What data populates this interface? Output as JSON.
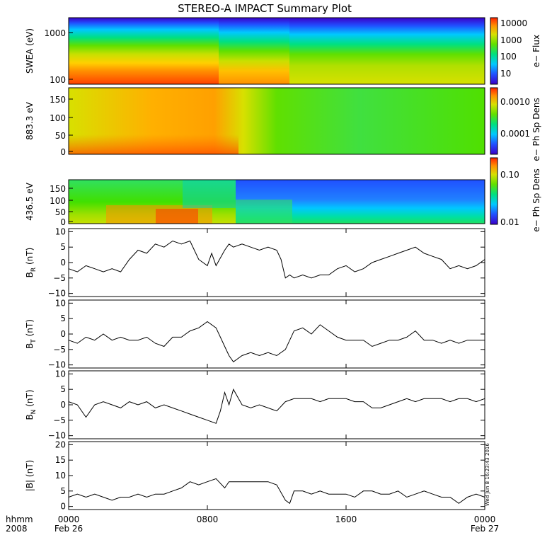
{
  "title": "STEREO-A IMPACT Summary Plot",
  "colors": {
    "frame": "#000000",
    "line": "#000000",
    "colormap": [
      "#3a00c8",
      "#2050ff",
      "#00c8ff",
      "#00e080",
      "#60e000",
      "#d8e000",
      "#ff9000",
      "#ff2000"
    ]
  },
  "timestamp": "Wed Jun 8 16:23:43 2016",
  "x_axis": {
    "hhmm_label": "hhmm",
    "year_label": "2008",
    "ticks": [
      "0000",
      "0800",
      "1600",
      "0000"
    ],
    "dates": [
      "Feb 26",
      "Feb 27"
    ]
  },
  "chart_data": [
    {
      "type": "heatmap",
      "ylabel": "SWEA (eV)",
      "ytick_labels": [
        "1000",
        "100"
      ],
      "yscale": "log",
      "colorbar": {
        "label": "e− Flux",
        "tick_labels": [
          "10000",
          "1000",
          "100",
          "10"
        ],
        "scale": "log"
      },
      "description_keys": {
        "x_hours": [
          0,
          24
        ],
        "transitions_hours": [
          9.5,
          12.5
        ]
      }
    },
    {
      "type": "heatmap",
      "ylabel": "883.3 eV",
      "ytick_labels": [
        "150",
        "100",
        "50",
        "0"
      ],
      "ylim": [
        0,
        180
      ],
      "colorbar": {
        "label": "e− Ph Sp Dens",
        "tick_labels": [
          "0.0010",
          "0.0001"
        ],
        "scale": "log"
      }
    },
    {
      "type": "heatmap",
      "ylabel": "436.5 eV",
      "ytick_labels": [
        "150",
        "100",
        "50",
        "0"
      ],
      "ylim": [
        0,
        180
      ],
      "colorbar": {
        "label": "e− Ph Sp Dens",
        "tick_labels": [
          "0.10",
          "0.01"
        ],
        "scale": "log"
      }
    },
    {
      "type": "line",
      "ylabel_main": "B",
      "ylabel_sub": "R",
      "ylabel_unit": "(nT)",
      "ytick_labels": [
        "10",
        "5",
        "0",
        "−5",
        "−10"
      ],
      "ylim": [
        -11,
        11
      ],
      "x": [
        0,
        0.5,
        1,
        1.5,
        2,
        2.5,
        3,
        3.5,
        4,
        4.5,
        5,
        5.5,
        6,
        6.5,
        7,
        7.25,
        7.5,
        8,
        8.25,
        8.5,
        9,
        9.25,
        9.5,
        10,
        10.5,
        11,
        11.5,
        12,
        12.25,
        12.5,
        12.75,
        13,
        13.5,
        14,
        14.5,
        15,
        15.5,
        16,
        16.5,
        17,
        17.5,
        18,
        18.5,
        19,
        19.5,
        20,
        20.5,
        21,
        21.5,
        22,
        22.5,
        23,
        23.5,
        24
      ],
      "values": [
        -2,
        -3,
        -1,
        -2,
        -3,
        -2,
        -3,
        1,
        4,
        3,
        6,
        5,
        7,
        6,
        7,
        4,
        1,
        -1,
        3,
        -1,
        4,
        6,
        5,
        6,
        5,
        4,
        5,
        4,
        1,
        -5,
        -4,
        -5,
        -4,
        -5,
        -4,
        -4,
        -2,
        -1,
        -3,
        -2,
        0,
        1,
        2,
        3,
        4,
        5,
        3,
        2,
        1,
        -2,
        -1,
        -2,
        -1,
        1
      ]
    },
    {
      "type": "line",
      "ylabel_main": "B",
      "ylabel_sub": "T",
      "ylabel_unit": "(nT)",
      "ytick_labels": [
        "10",
        "5",
        "0",
        "−5",
        "−10"
      ],
      "ylim": [
        -11,
        11
      ],
      "x": [
        0,
        0.5,
        1,
        1.5,
        2,
        2.5,
        3,
        3.5,
        4,
        4.5,
        5,
        5.5,
        6,
        6.5,
        7,
        7.5,
        8,
        8.5,
        9,
        9.25,
        9.5,
        10,
        10.5,
        11,
        11.5,
        12,
        12.5,
        13,
        13.5,
        14,
        14.5,
        15,
        15.5,
        16,
        16.5,
        17,
        17.5,
        18,
        18.5,
        19,
        19.5,
        20,
        20.5,
        21,
        21.5,
        22,
        22.5,
        23,
        23.5,
        24
      ],
      "values": [
        -2,
        -3,
        -1,
        -2,
        0,
        -2,
        -1,
        -2,
        -2,
        -1,
        -3,
        -4,
        -1,
        -1,
        1,
        2,
        4,
        2,
        -4,
        -7,
        -9,
        -7,
        -6,
        -7,
        -6,
        -7,
        -5,
        1,
        2,
        0,
        3,
        1,
        -1,
        -2,
        -2,
        -2,
        -4,
        -3,
        -2,
        -2,
        -1,
        1,
        -2,
        -2,
        -3,
        -2,
        -3,
        -2,
        -2,
        -2
      ]
    },
    {
      "type": "line",
      "ylabel_main": "B",
      "ylabel_sub": "N",
      "ylabel_unit": "(nT)",
      "ytick_labels": [
        "10",
        "5",
        "0",
        "−5",
        "−10"
      ],
      "ylim": [
        -11,
        11
      ],
      "x": [
        0,
        0.5,
        1,
        1.5,
        2,
        2.5,
        3,
        3.5,
        4,
        4.5,
        5,
        5.5,
        6,
        6.5,
        7,
        7.5,
        8,
        8.5,
        8.75,
        9,
        9.25,
        9.5,
        10,
        10.5,
        11,
        11.5,
        12,
        12.5,
        13,
        13.5,
        14,
        14.5,
        15,
        15.5,
        16,
        16.5,
        17,
        17.5,
        18,
        18.5,
        19,
        19.5,
        20,
        20.5,
        21,
        21.5,
        22,
        22.5,
        23,
        23.5,
        24
      ],
      "values": [
        1,
        0,
        -4,
        0,
        1,
        0,
        -1,
        1,
        0,
        1,
        -1,
        0,
        -1,
        -2,
        -3,
        -4,
        -5,
        -6,
        -2,
        4,
        0,
        5,
        0,
        -1,
        0,
        -1,
        -2,
        1,
        2,
        2,
        2,
        1,
        2,
        2,
        2,
        1,
        1,
        -1,
        -1,
        0,
        1,
        2,
        1,
        2,
        2,
        2,
        1,
        2,
        2,
        1,
        2
      ]
    },
    {
      "type": "line",
      "ylabel": "|B| (nT)",
      "ytick_labels": [
        "20",
        "15",
        "10",
        "5",
        "0"
      ],
      "ylim": [
        -1,
        21
      ],
      "x": [
        0,
        0.5,
        1,
        1.5,
        2,
        2.5,
        3,
        3.5,
        4,
        4.5,
        5,
        5.5,
        6,
        6.5,
        7,
        7.5,
        8,
        8.5,
        9,
        9.25,
        9.5,
        10,
        10.5,
        11,
        11.5,
        12,
        12.5,
        12.75,
        13,
        13.5,
        14,
        14.5,
        15,
        15.5,
        16,
        16.5,
        17,
        17.5,
        18,
        18.5,
        19,
        19.5,
        20,
        20.5,
        21,
        21.5,
        22,
        22.5,
        23,
        23.5,
        24
      ],
      "values": [
        3,
        4,
        3,
        4,
        3,
        2,
        3,
        3,
        4,
        3,
        4,
        4,
        5,
        6,
        8,
        7,
        8,
        9,
        6,
        8,
        8,
        8,
        8,
        8,
        8,
        7,
        2,
        1,
        5,
        5,
        4,
        5,
        4,
        4,
        4,
        3,
        5,
        5,
        4,
        4,
        5,
        3,
        4,
        5,
        4,
        3,
        3,
        1,
        3,
        4,
        3
      ]
    }
  ]
}
